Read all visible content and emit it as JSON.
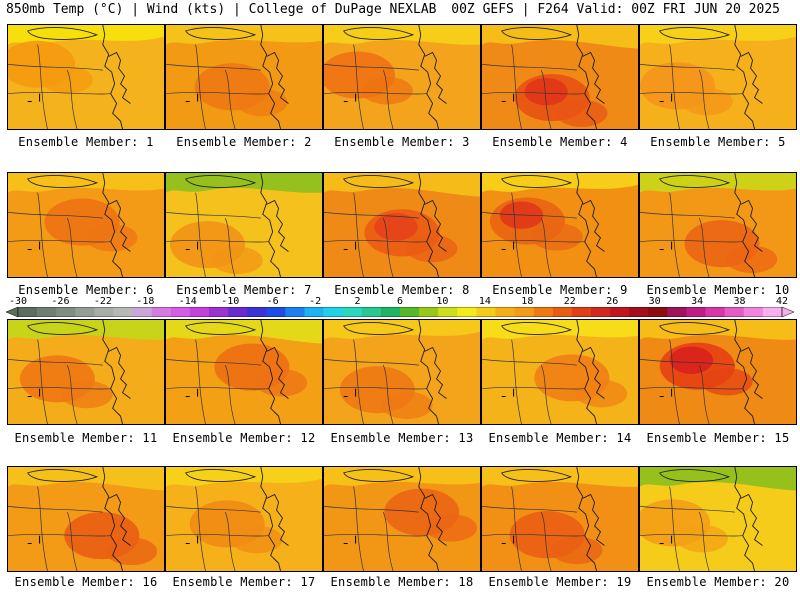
{
  "header": {
    "left": "850mb Temp (°C) | Wind (kts) | College of DuPage NEXLAB",
    "right": "00Z GEFS | F264 Valid: 00Z FRI JUN 20 2025"
  },
  "members": [
    {
      "label": "Ensemble Member: 1",
      "base": "#f4b21d",
      "hot": "#f59a10",
      "hot2": null,
      "cool": "#f7e20c"
    },
    {
      "label": "Ensemble Member: 2",
      "base": "#f39a14",
      "hot": "#ef7a12",
      "hot2": null,
      "cool": "#f5c61a"
    },
    {
      "label": "Ensemble Member: 3",
      "base": "#f4a41c",
      "hot": "#ef7312",
      "hot2": null,
      "cool": "#f6d21a"
    },
    {
      "label": "Ensemble Member: 4",
      "base": "#f08a16",
      "hot": "#e85414",
      "hot2": "#e0361a",
      "cool": "#f6c21a"
    },
    {
      "label": "Ensemble Member: 5",
      "base": "#f6b01c",
      "hot": "#f3951a",
      "hot2": null,
      "cool": "#f6d41a"
    },
    {
      "label": "Ensemble Member: 6",
      "base": "#f39a16",
      "hot": "#ef7414",
      "hot2": null,
      "cool": "#f6c41a"
    },
    {
      "label": "Ensemble Member: 7",
      "base": "#f5c11c",
      "hot": "#f29416",
      "hot2": null,
      "cool": "#8cc01e"
    },
    {
      "label": "Ensemble Member: 8",
      "base": "#f08a16",
      "hot": "#ea5c14",
      "hot2": "#e4431a",
      "cool": "#f5c01a"
    },
    {
      "label": "Ensemble Member: 9",
      "base": "#f29014",
      "hot": "#ea6514",
      "hot2": "#e0361a",
      "cool": "#f6d41a"
    },
    {
      "label": "Ensemble Member: 10",
      "base": "#f39816",
      "hot": "#ec6614",
      "hot2": null,
      "cool": "#c9d81a"
    },
    {
      "label": "Ensemble Member: 11",
      "base": "#f4ac1a",
      "hot": "#ef7814",
      "hot2": null,
      "cool": "#c3d81a"
    },
    {
      "label": "Ensemble Member: 12",
      "base": "#f3a014",
      "hot": "#ee7014",
      "hot2": null,
      "cool": "#e2de1a"
    },
    {
      "label": "Ensemble Member: 13",
      "base": "#f4a41a",
      "hot": "#ef7a14",
      "hot2": null,
      "cool": "#f6cc1a"
    },
    {
      "label": "Ensemble Member: 14",
      "base": "#f5b31a",
      "hot": "#f08014",
      "hot2": null,
      "cool": "#f6e01a"
    },
    {
      "label": "Ensemble Member: 15",
      "base": "#ef8a14",
      "hot": "#e64214",
      "hot2": "#d8201e",
      "cool": "#f6c21a"
    },
    {
      "label": "Ensemble Member: 16",
      "base": "#f39a16",
      "hot": "#ea6014",
      "hot2": null,
      "cool": "#f5c41a"
    },
    {
      "label": "Ensemble Member: 17",
      "base": "#f5b01a",
      "hot": "#f08c14",
      "hot2": null,
      "cool": "#f6d41a"
    },
    {
      "label": "Ensemble Member: 18",
      "base": "#f29616",
      "hot": "#ec6614",
      "hot2": null,
      "cool": "#f6c41a"
    },
    {
      "label": "Ensemble Member: 19",
      "base": "#f29016",
      "hot": "#ea6014",
      "hot2": null,
      "cool": "#f6c41a"
    },
    {
      "label": "Ensemble Member: 20",
      "base": "#f6cc1a",
      "hot": "#f3a016",
      "hot2": null,
      "cool": "#8cc01e"
    }
  ],
  "colorbar": {
    "labels": [
      "-30",
      "-26",
      "-22",
      "-18",
      "-14",
      "-10",
      "-6",
      "-2",
      "2",
      "6",
      "10",
      "14",
      "18",
      "22",
      "26",
      "30",
      "34",
      "38",
      "42"
    ],
    "colors": [
      "#5e6e5e",
      "#6f7f6f",
      "#808e80",
      "#959e95",
      "#a7ada7",
      "#b7b9b7",
      "#c9a6d8",
      "#d37be0",
      "#d45ce6",
      "#c340dd",
      "#9a33d0",
      "#6a2ad0",
      "#3a32d6",
      "#1e4ce6",
      "#1e80f0",
      "#1eb2f2",
      "#22d0e8",
      "#2ad8c0",
      "#28c890",
      "#20b460",
      "#56b828",
      "#98c81c",
      "#cce01a",
      "#f5ea1a",
      "#f6cc1a",
      "#f5ae1a",
      "#f39a16",
      "#ef7a14",
      "#e85c14",
      "#e03e18",
      "#d42620",
      "#c0141e",
      "#a40e1a",
      "#8c0c10",
      "#a0125c",
      "#c01c88",
      "#d836a8",
      "#e65cc6",
      "#f084de",
      "#f6b0ee"
    ]
  }
}
